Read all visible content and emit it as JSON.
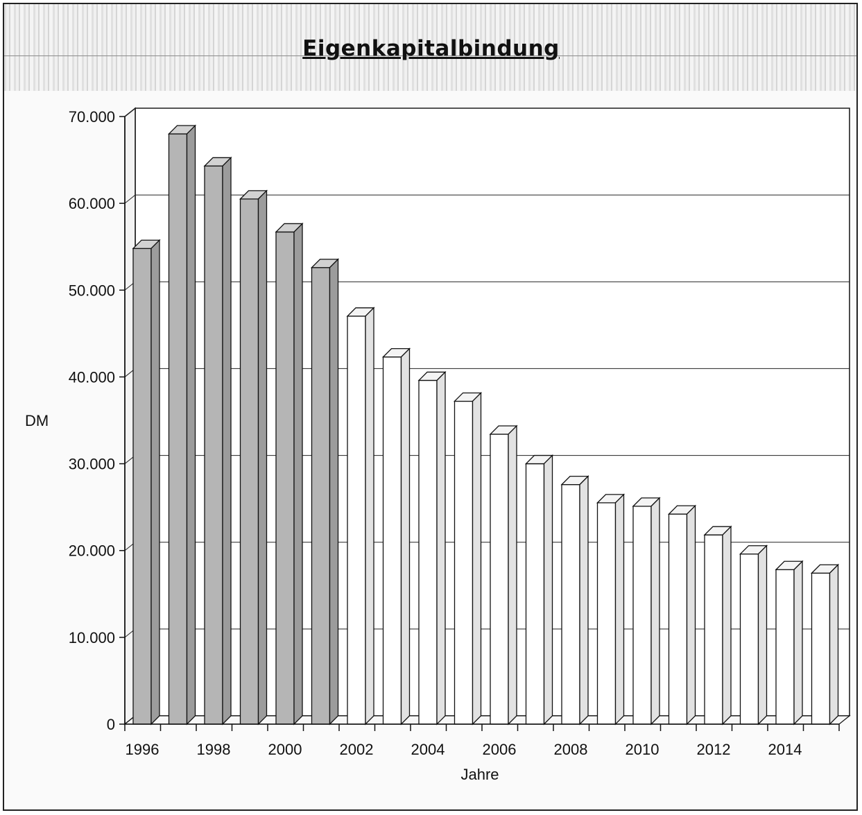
{
  "chart_data": {
    "type": "bar",
    "title": "Eigenkapitalbindung",
    "xlabel": "Jahre",
    "ylabel": "DM",
    "ylim": [
      0,
      70000
    ],
    "yticks": [
      0,
      10000,
      20000,
      30000,
      40000,
      50000,
      60000,
      70000
    ],
    "ytick_labels": [
      "0",
      "10.000",
      "20.000",
      "30.000",
      "40.000",
      "50.000",
      "60.000",
      "70.000"
    ],
    "xtick_labels": [
      "1996",
      "1998",
      "2000",
      "2002",
      "2004",
      "2006",
      "2008",
      "2010",
      "2012",
      "2014"
    ],
    "categories": [
      "1996",
      "1997",
      "1998",
      "1999",
      "2000",
      "2001",
      "2002",
      "2003",
      "2004",
      "2005",
      "2006",
      "2007",
      "2008",
      "2009",
      "2010",
      "2011",
      "2012",
      "2013",
      "2014",
      "2015"
    ],
    "values": [
      54800,
      68000,
      64300,
      60500,
      56700,
      52600,
      47000,
      42300,
      39600,
      37200,
      33400,
      30000,
      27600,
      25500,
      25100,
      24200,
      21800,
      19600,
      17800,
      17400
    ],
    "grid": true,
    "colors": {
      "shaded_bar": "#b5b5b5",
      "plain_bar": "#ffffff",
      "outline": "#111111"
    },
    "shaded_bar_count": 6
  }
}
